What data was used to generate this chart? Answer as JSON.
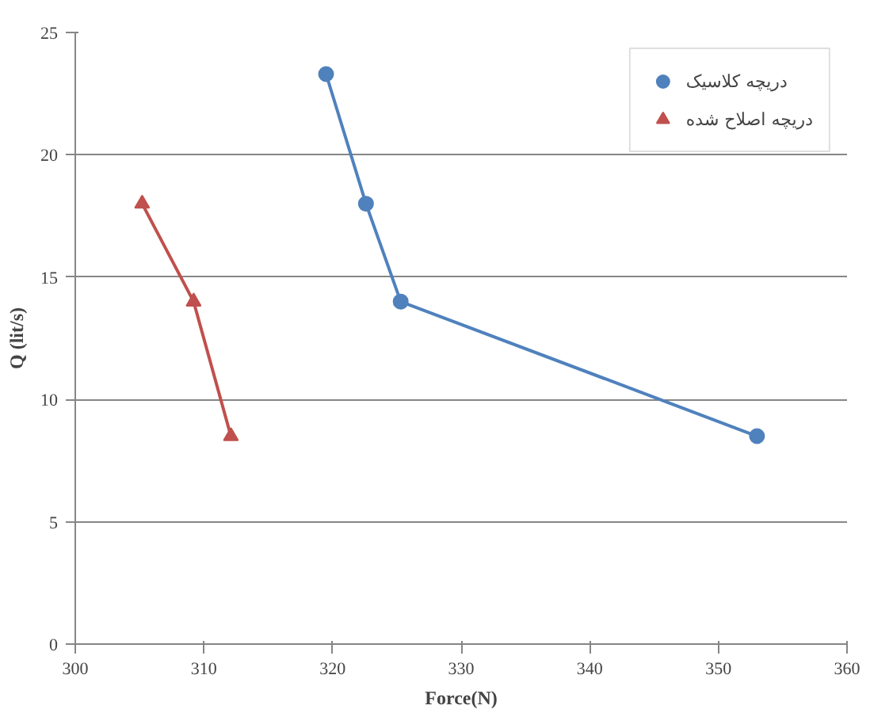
{
  "chart_data": {
    "type": "line",
    "xlabel": "Force(N)",
    "ylabel": "Q (lit/s)",
    "series": [
      {
        "name": "دریچه کلاسیک",
        "color": "#4f81bd",
        "marker": "circle",
        "x": [
          319.5,
          322.6,
          325.3,
          353
        ],
        "values": [
          23.3,
          18,
          14,
          8.5
        ]
      },
      {
        "name": "دریچه اصلاح شده",
        "color": "#c0504d",
        "marker": "triangle",
        "x": [
          305.2,
          309.2,
          312.1
        ],
        "values": [
          18,
          14,
          8.5
        ]
      }
    ],
    "xlim": [
      300,
      360
    ],
    "xticks": [
      300,
      310,
      320,
      330,
      340,
      350,
      360
    ],
    "ylim": [
      0,
      25
    ],
    "yticks": [
      0,
      5,
      10,
      15,
      20,
      25
    ],
    "grid": "y",
    "legend": "top right"
  }
}
